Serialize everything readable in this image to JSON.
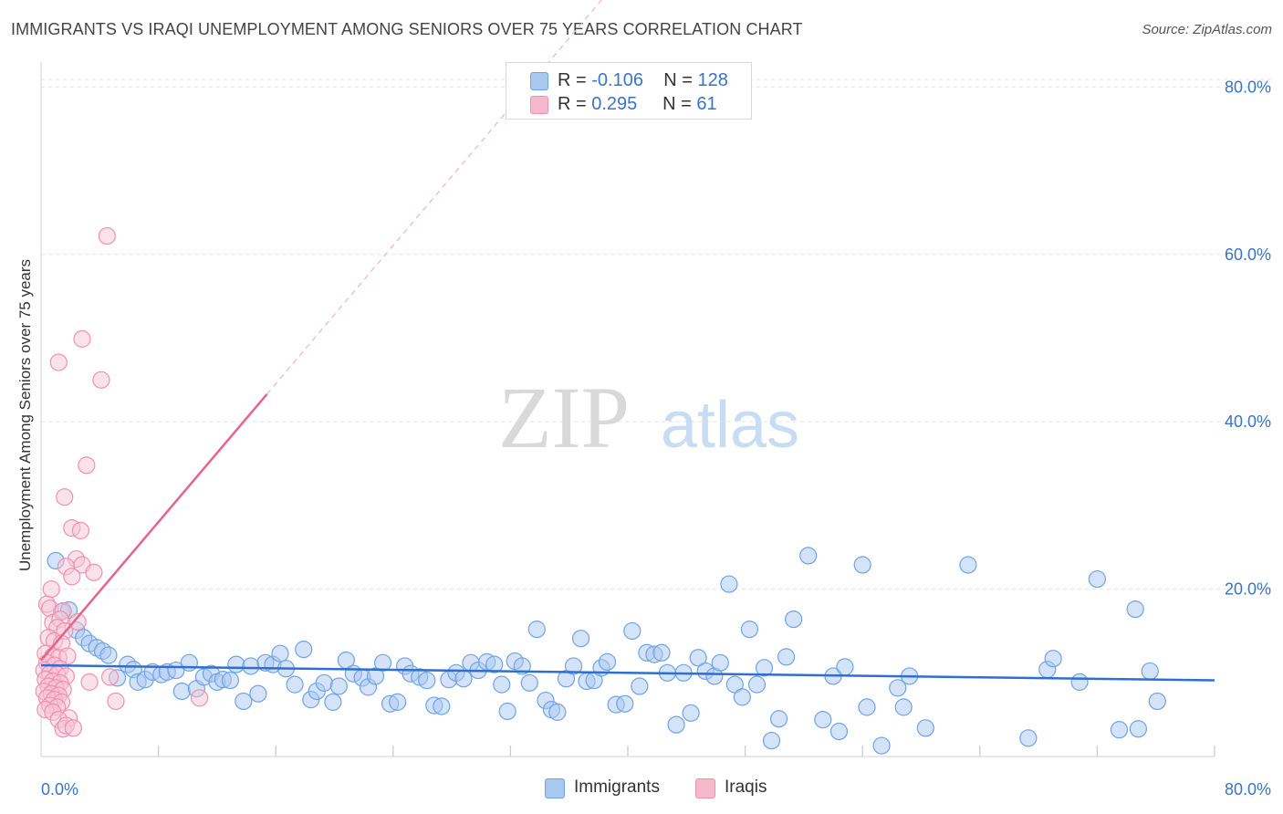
{
  "header": {
    "title": "IMMIGRANTS VS IRAQI UNEMPLOYMENT AMONG SENIORS OVER 75 YEARS CORRELATION CHART",
    "source": "Source: ZipAtlas.com"
  },
  "watermark": {
    "zip": "ZIP",
    "atlas": "atlas"
  },
  "legend": {
    "rows": [
      {
        "r_label": "R = ",
        "r_value": "-0.106",
        "n_label": "N = ",
        "n_value": "128",
        "color": "#a9c8f0"
      },
      {
        "r_label": "R = ",
        "r_value": "0.295",
        "n_label": "N = ",
        "n_value": "61",
        "color": "#f6b8cb"
      }
    ]
  },
  "bottom_legend": [
    {
      "label": "Immigrants",
      "color": "#a9c8f0"
    },
    {
      "label": "Iraqis",
      "color": "#f6b8cb"
    }
  ],
  "chart_data": {
    "type": "scatter",
    "title": "IMMIGRANTS VS IRAQI UNEMPLOYMENT AMONG SENIORS OVER 75 YEARS CORRELATION CHART",
    "xlabel": "",
    "ylabel": "Unemployment Among Seniors over 75 years",
    "xlim": [
      0,
      80
    ],
    "ylim": [
      0,
      82
    ],
    "x_tick_labels": [
      "0.0%",
      "80.0%"
    ],
    "y_ticks": [
      20,
      40,
      60,
      80
    ],
    "y_tick_labels": [
      "20.0%",
      "40.0%",
      "60.0%",
      "80.0%"
    ],
    "grid": true,
    "colors": {
      "immigrants": "#6fa3e6",
      "iraqis": "#f08fae",
      "immigrants_line": "#2f6fd0",
      "iraqis_line": "#e8638c",
      "tick_label": "#3a73c8"
    },
    "series": [
      {
        "name": "Immigrants",
        "trend": {
          "x": [
            0,
            80
          ],
          "y": [
            10.9,
            9.1
          ],
          "style": "solid"
        },
        "points": [
          [
            1.0,
            23.4
          ],
          [
            1.4,
            17.3
          ],
          [
            1.9,
            17.5
          ],
          [
            2.4,
            15.1
          ],
          [
            2.9,
            14.2
          ],
          [
            3.3,
            13.5
          ],
          [
            3.8,
            13.0
          ],
          [
            4.2,
            12.6
          ],
          [
            4.6,
            12.1
          ],
          [
            5.2,
            9.4
          ],
          [
            5.9,
            11.0
          ],
          [
            6.3,
            10.4
          ],
          [
            6.6,
            8.9
          ],
          [
            7.1,
            9.2
          ],
          [
            7.6,
            10.1
          ],
          [
            8.2,
            9.8
          ],
          [
            8.6,
            10.1
          ],
          [
            9.2,
            10.3
          ],
          [
            9.6,
            7.8
          ],
          [
            10.1,
            11.2
          ],
          [
            10.6,
            8.1
          ],
          [
            11.1,
            9.5
          ],
          [
            11.6,
            9.9
          ],
          [
            12.0,
            8.9
          ],
          [
            12.4,
            9.2
          ],
          [
            12.9,
            9.1
          ],
          [
            13.3,
            11.0
          ],
          [
            13.8,
            6.6
          ],
          [
            14.3,
            10.8
          ],
          [
            14.8,
            7.5
          ],
          [
            15.3,
            11.2
          ],
          [
            15.8,
            11.0
          ],
          [
            16.3,
            12.3
          ],
          [
            16.7,
            10.5
          ],
          [
            17.3,
            8.6
          ],
          [
            17.9,
            12.8
          ],
          [
            18.4,
            6.8
          ],
          [
            18.8,
            7.8
          ],
          [
            19.3,
            8.8
          ],
          [
            19.9,
            6.5
          ],
          [
            20.3,
            8.4
          ],
          [
            20.8,
            11.5
          ],
          [
            21.3,
            9.9
          ],
          [
            21.9,
            9.4
          ],
          [
            22.3,
            8.3
          ],
          [
            22.8,
            9.6
          ],
          [
            23.3,
            11.2
          ],
          [
            23.8,
            6.3
          ],
          [
            24.3,
            6.5
          ],
          [
            24.8,
            10.8
          ],
          [
            25.2,
            9.9
          ],
          [
            25.8,
            9.5
          ],
          [
            26.3,
            9.1
          ],
          [
            26.8,
            6.1
          ],
          [
            27.3,
            6.0
          ],
          [
            27.8,
            9.2
          ],
          [
            28.3,
            10.0
          ],
          [
            28.8,
            9.3
          ],
          [
            29.3,
            11.2
          ],
          [
            29.8,
            10.3
          ],
          [
            30.4,
            11.3
          ],
          [
            30.9,
            11.0
          ],
          [
            31.4,
            8.6
          ],
          [
            31.8,
            5.4
          ],
          [
            32.3,
            11.4
          ],
          [
            32.8,
            10.8
          ],
          [
            33.3,
            8.8
          ],
          [
            33.8,
            15.2
          ],
          [
            34.4,
            6.7
          ],
          [
            34.8,
            5.6
          ],
          [
            35.2,
            5.3
          ],
          [
            35.8,
            9.3
          ],
          [
            36.3,
            10.8
          ],
          [
            36.8,
            14.1
          ],
          [
            37.2,
            9.0
          ],
          [
            37.7,
            9.1
          ],
          [
            38.2,
            10.6
          ],
          [
            38.6,
            11.3
          ],
          [
            39.2,
            6.2
          ],
          [
            39.8,
            6.3
          ],
          [
            40.3,
            15.0
          ],
          [
            40.8,
            8.4
          ],
          [
            41.3,
            12.4
          ],
          [
            41.8,
            12.2
          ],
          [
            42.3,
            12.4
          ],
          [
            42.7,
            10.0
          ],
          [
            43.3,
            3.8
          ],
          [
            43.8,
            10.0
          ],
          [
            44.3,
            5.2
          ],
          [
            44.8,
            11.8
          ],
          [
            45.3,
            10.2
          ],
          [
            45.9,
            9.6
          ],
          [
            46.3,
            11.2
          ],
          [
            46.9,
            20.6
          ],
          [
            47.3,
            8.6
          ],
          [
            47.8,
            7.1
          ],
          [
            48.3,
            15.2
          ],
          [
            48.8,
            8.6
          ],
          [
            49.3,
            10.6
          ],
          [
            49.8,
            1.9
          ],
          [
            50.3,
            4.5
          ],
          [
            50.8,
            11.9
          ],
          [
            51.3,
            16.4
          ],
          [
            52.3,
            24.0
          ],
          [
            53.3,
            4.4
          ],
          [
            54.0,
            9.6
          ],
          [
            54.4,
            3.0
          ],
          [
            54.8,
            10.7
          ],
          [
            56.0,
            22.9
          ],
          [
            56.3,
            5.9
          ],
          [
            57.3,
            1.3
          ],
          [
            58.4,
            8.2
          ],
          [
            58.8,
            5.9
          ],
          [
            59.2,
            9.6
          ],
          [
            60.3,
            3.4
          ],
          [
            63.2,
            22.9
          ],
          [
            67.3,
            2.2
          ],
          [
            68.6,
            10.4
          ],
          [
            69.0,
            11.7
          ],
          [
            70.8,
            8.9
          ],
          [
            72.0,
            21.2
          ],
          [
            73.5,
            3.2
          ],
          [
            74.6,
            17.6
          ],
          [
            74.8,
            3.3
          ],
          [
            75.6,
            10.2
          ],
          [
            76.1,
            6.6
          ]
        ]
      },
      {
        "name": "Iraqis",
        "trend": {
          "x": [
            0,
            15.4
          ],
          "y": [
            11.5,
            43.3
          ],
          "style": "solid",
          "extension": {
            "x": [
              15.4,
              40
            ],
            "y": [
              43.3,
              94.1
            ],
            "style": "dashed"
          }
        },
        "points": [
          [
            4.5,
            62.2
          ],
          [
            2.8,
            49.9
          ],
          [
            1.2,
            47.1
          ],
          [
            4.1,
            45.0
          ],
          [
            3.1,
            34.8
          ],
          [
            1.6,
            31.0
          ],
          [
            2.1,
            27.3
          ],
          [
            2.7,
            27.0
          ],
          [
            2.4,
            23.6
          ],
          [
            1.7,
            22.7
          ],
          [
            2.8,
            22.9
          ],
          [
            3.6,
            22.0
          ],
          [
            2.1,
            21.5
          ],
          [
            0.7,
            20.0
          ],
          [
            0.4,
            18.2
          ],
          [
            0.6,
            17.7
          ],
          [
            1.5,
            17.4
          ],
          [
            0.8,
            16.0
          ],
          [
            1.3,
            16.4
          ],
          [
            2.5,
            16.1
          ],
          [
            1.1,
            15.4
          ],
          [
            1.6,
            15.0
          ],
          [
            0.5,
            14.2
          ],
          [
            0.9,
            13.8
          ],
          [
            1.4,
            13.5
          ],
          [
            0.3,
            12.3
          ],
          [
            0.8,
            12.0
          ],
          [
            1.2,
            11.8
          ],
          [
            1.8,
            12.0
          ],
          [
            0.4,
            11.2
          ],
          [
            0.9,
            10.9
          ],
          [
            1.3,
            10.5
          ],
          [
            0.2,
            10.3
          ],
          [
            0.6,
            9.9
          ],
          [
            1.1,
            9.8
          ],
          [
            1.7,
            9.6
          ],
          [
            0.3,
            9.2
          ],
          [
            0.8,
            9.0
          ],
          [
            1.3,
            8.8
          ],
          [
            0.5,
            8.4
          ],
          [
            1.0,
            8.2
          ],
          [
            1.5,
            8.0
          ],
          [
            0.2,
            7.8
          ],
          [
            0.7,
            7.5
          ],
          [
            1.2,
            7.3
          ],
          [
            0.4,
            7.0
          ],
          [
            0.9,
            6.8
          ],
          [
            1.4,
            6.5
          ],
          [
            0.6,
            6.1
          ],
          [
            1.1,
            5.9
          ],
          [
            0.3,
            5.6
          ],
          [
            0.8,
            5.3
          ],
          [
            1.9,
            4.6
          ],
          [
            1.2,
            4.4
          ],
          [
            1.5,
            3.3
          ],
          [
            1.7,
            3.7
          ],
          [
            2.2,
            3.4
          ],
          [
            3.3,
            8.9
          ],
          [
            4.7,
            9.5
          ],
          [
            5.1,
            6.6
          ],
          [
            10.8,
            7.0
          ]
        ]
      }
    ]
  }
}
